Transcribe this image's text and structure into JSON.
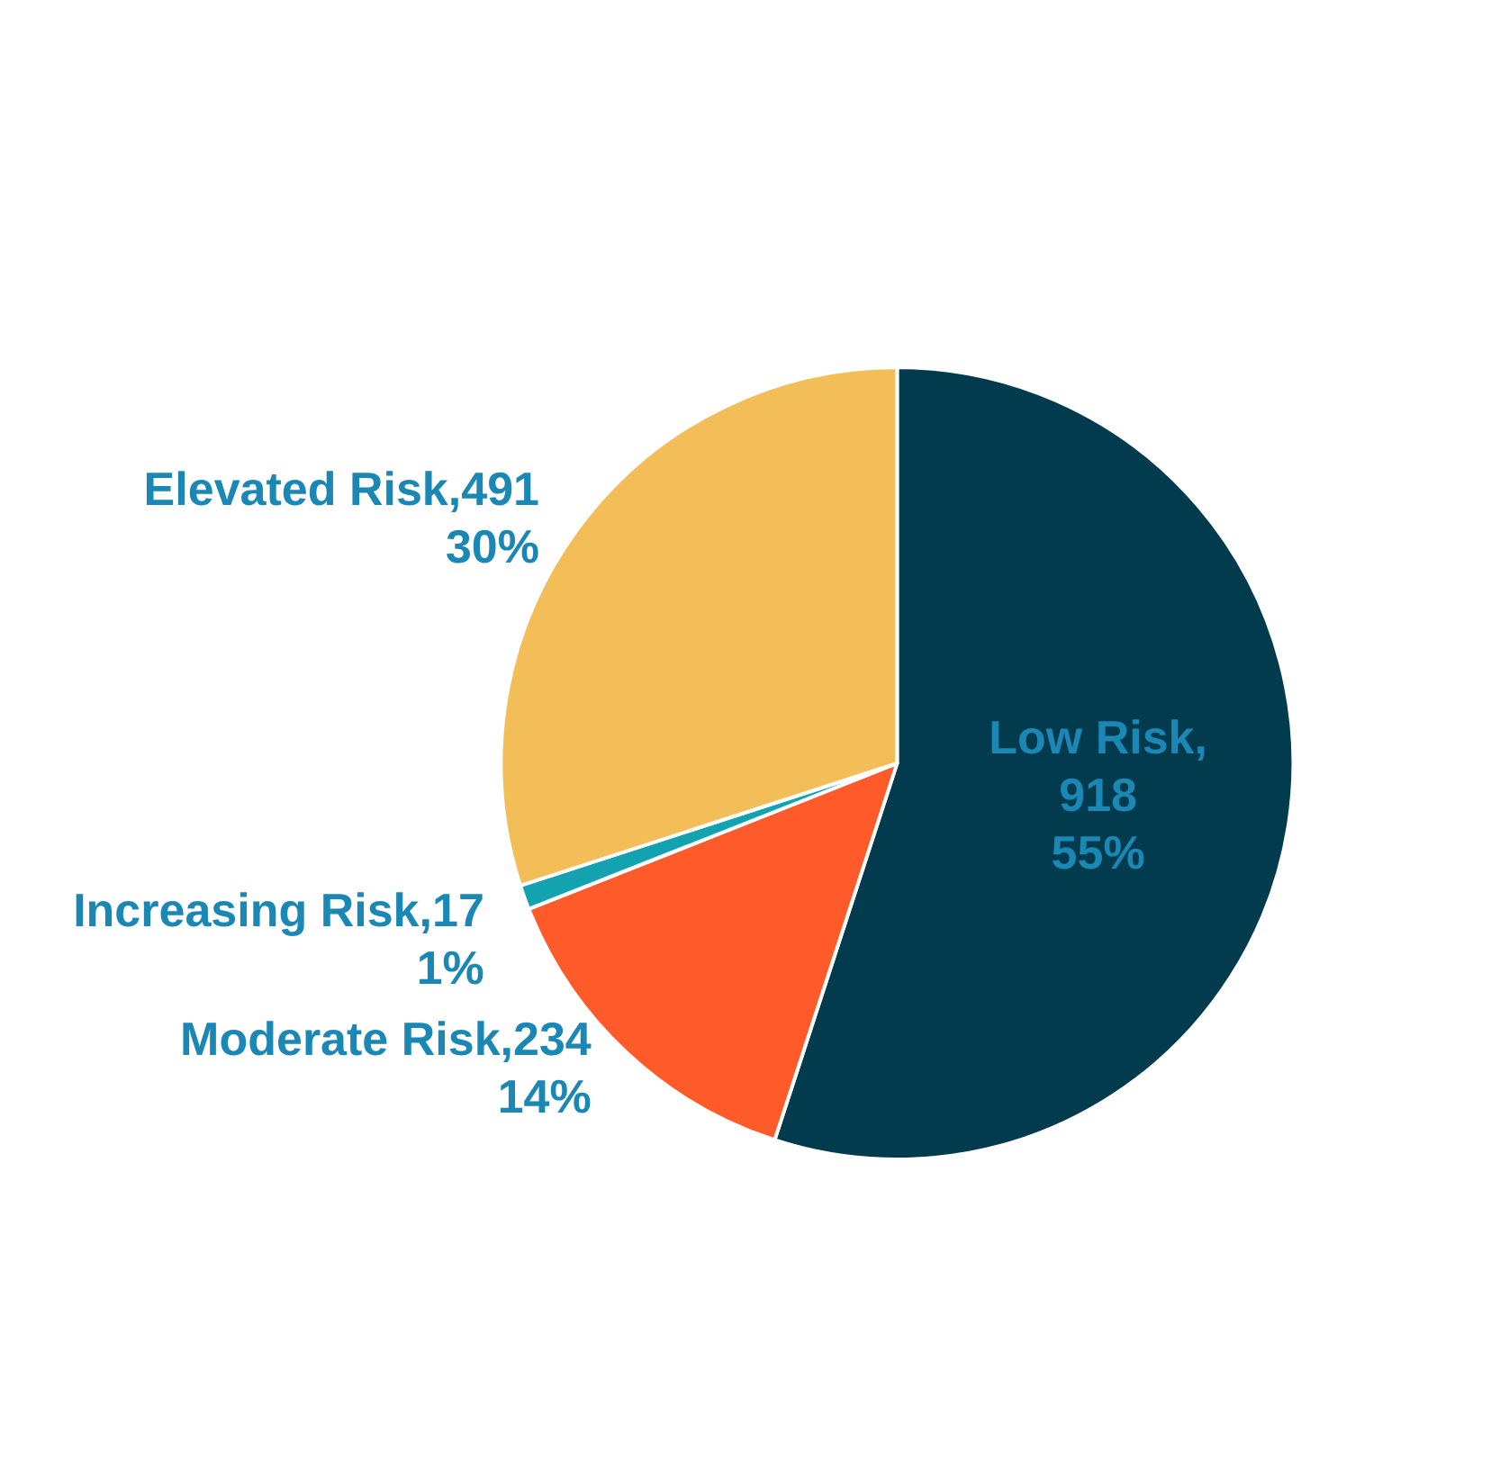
{
  "chart_data": {
    "type": "pie",
    "categories": [
      "Low Risk,918",
      "Moderate Risk,234",
      "Increasing Risk,17",
      "Elevated Risk,491"
    ],
    "values": [
      55,
      14,
      1,
      30
    ],
    "colors": [
      "#023a4e",
      "#fe5a2a",
      "#13a2b0",
      "#f3be57"
    ],
    "value_labels": [
      "55%",
      "14%",
      "1%",
      "30%"
    ],
    "legend": false
  }
}
